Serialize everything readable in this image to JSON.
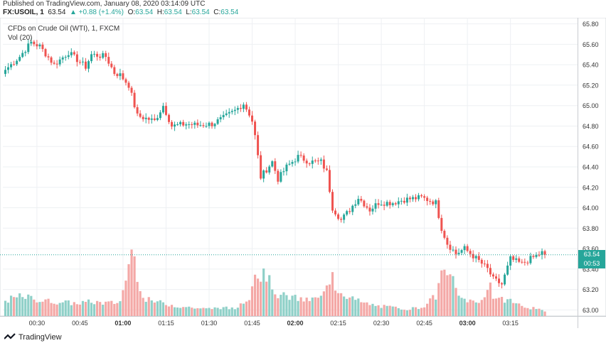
{
  "header": {
    "published": "Published on TradingView.com, January 08, 2020 03:14:09 UTC",
    "symbol": "FX:USOIL, 1",
    "price": "63.54",
    "change_arrow": "▲",
    "change": "+0.88 (+1.4%)",
    "o_label": "O:",
    "o": "63.54",
    "h_label": "H:",
    "h": "63.54",
    "l_label": "L:",
    "l": "63.54",
    "c_label": "C:",
    "c": "63.54"
  },
  "legend": {
    "line1": "CFDs on Crude Oil (WTI), 1, FXCM",
    "line2": "Vol (20)"
  },
  "price_tag": {
    "price": "63.54",
    "countdown": "00:53",
    "hidden_tick": "63.40"
  },
  "logo": {
    "text": "TradingView"
  },
  "colors": {
    "up": "#26a69a",
    "down": "#ef5350",
    "up_vol": "#8fd0c8",
    "down_vol": "#f4a8a6"
  },
  "chart_data": {
    "type": "candlestick",
    "yticks": [
      "65.80",
      "65.60",
      "65.40",
      "65.20",
      "65.00",
      "64.80",
      "64.60",
      "64.40",
      "64.20",
      "64.00",
      "63.80",
      "63.60",
      "63.40",
      "63.20",
      "63.00"
    ],
    "xticks": [
      "00:30",
      "00:45",
      "01:00",
      "01:15",
      "01:30",
      "01:45",
      "02:00",
      "02:15",
      "02:30",
      "02:45",
      "03:00",
      "03:15"
    ],
    "ylim": [
      62.94,
      65.86
    ],
    "last_price": 63.54,
    "key_path": [
      [
        0,
        65.35
      ],
      [
        5,
        65.48
      ],
      [
        9,
        65.62
      ],
      [
        12,
        65.58
      ],
      [
        17,
        65.4
      ],
      [
        22,
        65.52
      ],
      [
        28,
        65.38
      ],
      [
        30,
        65.5
      ],
      [
        35,
        65.48
      ],
      [
        38,
        65.32
      ],
      [
        40,
        65.3
      ],
      [
        43,
        65.2
      ],
      [
        46,
        64.9
      ],
      [
        52,
        64.85
      ],
      [
        55,
        65.0
      ],
      [
        58,
        64.8
      ],
      [
        63,
        64.82
      ],
      [
        67,
        64.81
      ],
      [
        72,
        64.82
      ],
      [
        76,
        64.88
      ],
      [
        80,
        64.95
      ],
      [
        83,
        65.02
      ],
      [
        85,
        64.92
      ],
      [
        86,
        64.85
      ],
      [
        87,
        64.7
      ],
      [
        89,
        64.3
      ],
      [
        93,
        64.45
      ],
      [
        95,
        64.28
      ],
      [
        98,
        64.4
      ],
      [
        102,
        64.5
      ],
      [
        106,
        64.45
      ],
      [
        110,
        64.45
      ],
      [
        112,
        64.35
      ],
      [
        114,
        64.0
      ],
      [
        117,
        63.88
      ],
      [
        120,
        63.98
      ],
      [
        123,
        64.1
      ],
      [
        127,
        63.98
      ],
      [
        130,
        64.05
      ],
      [
        135,
        64.05
      ],
      [
        139,
        64.08
      ],
      [
        145,
        64.1
      ],
      [
        150,
        64.05
      ],
      [
        152,
        63.8
      ],
      [
        154,
        63.65
      ],
      [
        157,
        63.55
      ],
      [
        160,
        63.6
      ],
      [
        165,
        63.48
      ],
      [
        168,
        63.4
      ],
      [
        170,
        63.3
      ],
      [
        173,
        63.25
      ],
      [
        176,
        63.5
      ],
      [
        180,
        63.45
      ],
      [
        183,
        63.5
      ],
      [
        187,
        63.56
      ],
      [
        188,
        63.54
      ]
    ],
    "volume_profile": [
      [
        0,
        22
      ],
      [
        6,
        28
      ],
      [
        12,
        22
      ],
      [
        18,
        20
      ],
      [
        24,
        18
      ],
      [
        30,
        20
      ],
      [
        36,
        18
      ],
      [
        40,
        20
      ],
      [
        45,
        105
      ],
      [
        46,
        60
      ],
      [
        48,
        24
      ],
      [
        55,
        18
      ],
      [
        60,
        14
      ],
      [
        65,
        12
      ],
      [
        70,
        10
      ],
      [
        75,
        12
      ],
      [
        80,
        10
      ],
      [
        85,
        28
      ],
      [
        87,
        65
      ],
      [
        88,
        55
      ],
      [
        91,
        60
      ],
      [
        92,
        48
      ],
      [
        95,
        30
      ],
      [
        100,
        26
      ],
      [
        105,
        22
      ],
      [
        110,
        26
      ],
      [
        113,
        45
      ],
      [
        114,
        72
      ],
      [
        115,
        40
      ],
      [
        120,
        26
      ],
      [
        125,
        18
      ],
      [
        130,
        14
      ],
      [
        135,
        12
      ],
      [
        140,
        10
      ],
      [
        145,
        12
      ],
      [
        150,
        28
      ],
      [
        151,
        45
      ],
      [
        153,
        65
      ],
      [
        154,
        52
      ],
      [
        155,
        70
      ],
      [
        156,
        48
      ],
      [
        158,
        26
      ],
      [
        165,
        18
      ],
      [
        169,
        45
      ],
      [
        170,
        28
      ],
      [
        172,
        22
      ],
      [
        175,
        24
      ],
      [
        180,
        14
      ],
      [
        185,
        10
      ],
      [
        188,
        6
      ]
    ]
  }
}
